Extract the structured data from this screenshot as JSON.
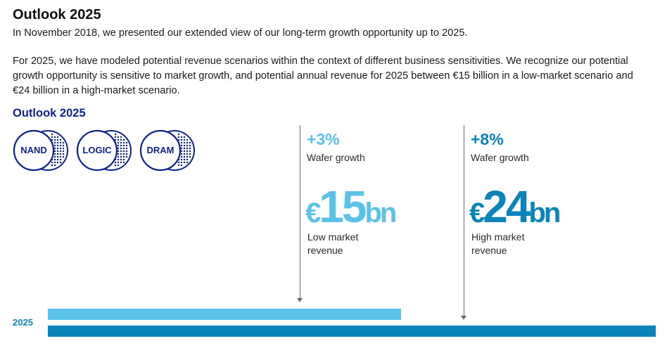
{
  "header": {
    "title": "Outlook 2025",
    "intro": "In November 2018, we presented our extended view of our long-term growth opportunity up to 2025.",
    "body": "For 2025, we have modeled potential revenue scenarios within the context of different business sensitivities. We recognize our potential growth opportunity is sensitive to market growth, and potential annual revenue for 2025 between €15 billion in a low-market scenario and €24 billion in a high-market scenario."
  },
  "section": {
    "title": "Outlook 2025",
    "segments": [
      {
        "label": "NAND"
      },
      {
        "label": "LOGIC"
      },
      {
        "label": "DRAM"
      }
    ]
  },
  "scenarios": {
    "low": {
      "growth": "+3%",
      "growth_label": "Wafer growth",
      "currency": "€",
      "amount": "15",
      "unit": "bn",
      "label_line1": "Low market",
      "label_line2": "revenue",
      "color": "#5bc2e7",
      "revenue_bn": 15
    },
    "high": {
      "growth": "+8%",
      "growth_label": "Wafer growth",
      "currency": "€",
      "amount": "24",
      "unit": "bn",
      "label_line1": "High market",
      "label_line2": "revenue",
      "color": "#0b85b9",
      "revenue_bn": 24
    }
  },
  "timeline": {
    "year": "2025"
  },
  "colors": {
    "navy": "#0f238c",
    "light_blue": "#5bc2e7",
    "dark_blue": "#0b85b9"
  }
}
